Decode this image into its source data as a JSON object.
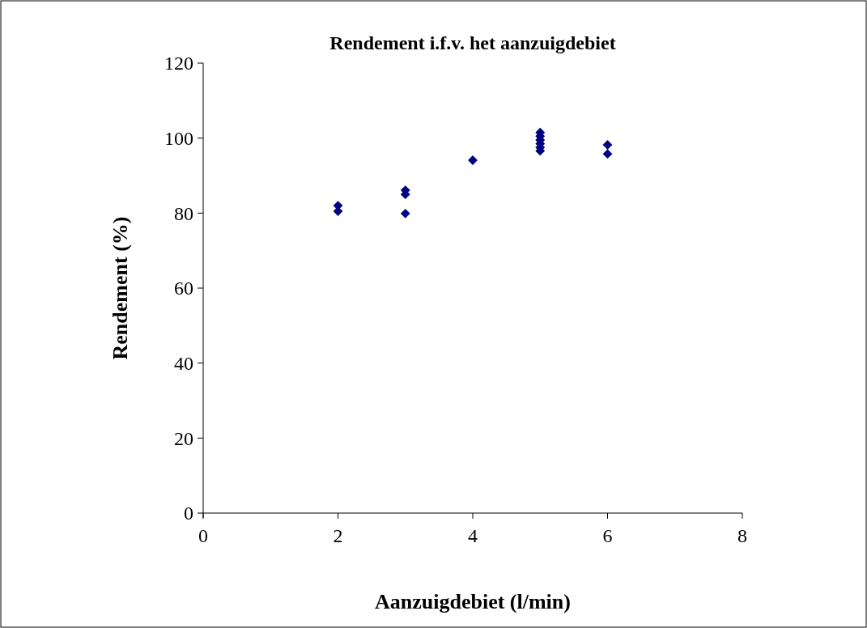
{
  "chart_data": {
    "type": "scatter",
    "title": "Rendement i.f.v. het aanzuigdebiet",
    "xlabel": "Aanzuigdebiet (l/min)",
    "ylabel": "Rendement (%)",
    "x": [
      2,
      2,
      3,
      3,
      3,
      4,
      5,
      5,
      5,
      5,
      5,
      5,
      6,
      6
    ],
    "series": [
      {
        "color": "#000080",
        "values": [
          82.0,
          80.5,
          86.1,
          85.0,
          79.9,
          94.1,
          101.5,
          100.5,
          99.5,
          98.5,
          97.5,
          96.6,
          98.2,
          95.8
        ]
      }
    ],
    "xlim": [
      0,
      8
    ],
    "xticks": [
      0,
      2,
      4,
      6,
      8
    ],
    "ylim": [
      0,
      120
    ],
    "yticks": [
      0,
      20,
      40,
      60,
      80,
      100,
      120
    ],
    "marker": "diamond"
  }
}
